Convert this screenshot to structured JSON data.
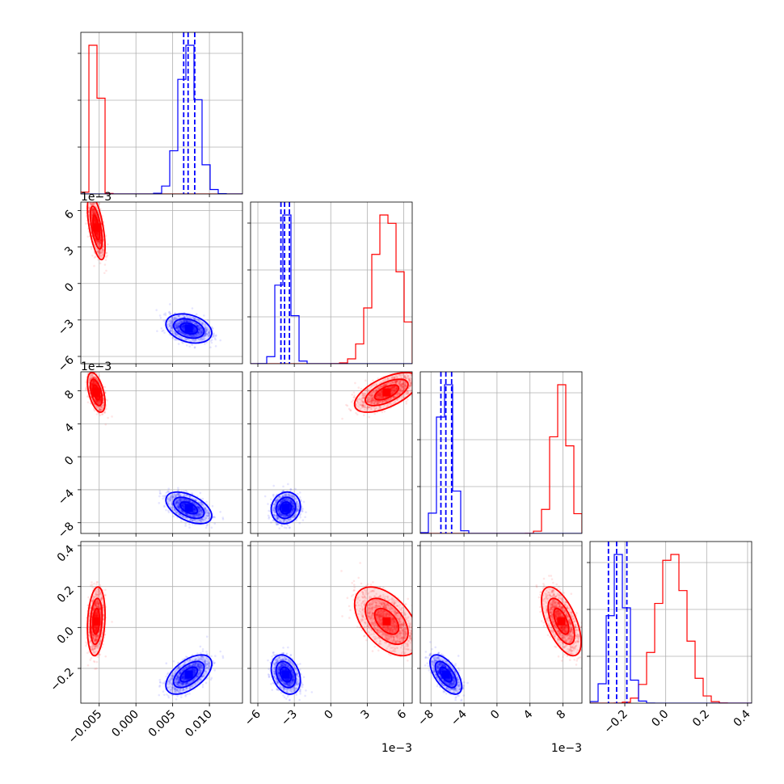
{
  "chart_data": {
    "type": "corner",
    "colors": {
      "series_a": "#ff0000",
      "series_b": "#0000ff",
      "grid": "#b0b0b0"
    },
    "grid": true,
    "series": [
      {
        "color": "red",
        "means": [
          -0.0054,
          0.0046,
          0.0078,
          0.03
        ],
        "sds": [
          0.0005,
          0.0011,
          0.001,
          0.07
        ]
      },
      {
        "color": "blue",
        "means": [
          0.0072,
          -0.0037,
          -0.0062,
          -0.23
        ],
        "sds": [
          0.0013,
          0.0005,
          0.0008,
          0.04
        ]
      }
    ],
    "correlations": [
      {
        "series": "red",
        "pairs": [
          [
            1,
            0,
            -0.6
          ],
          [
            2,
            0,
            -0.5
          ],
          [
            2,
            1,
            0.6
          ],
          [
            3,
            0,
            0.2
          ],
          [
            3,
            1,
            -0.5
          ],
          [
            3,
            2,
            -0.6
          ]
        ]
      },
      {
        "series": "blue",
        "pairs": [
          [
            1,
            0,
            -0.3
          ],
          [
            2,
            0,
            -0.5
          ],
          [
            2,
            1,
            0.1
          ],
          [
            3,
            0,
            0.55
          ],
          [
            3,
            1,
            -0.3
          ],
          [
            3,
            2,
            -0.6
          ]
        ]
      }
    ],
    "quantile_lines": {
      "color": "blue",
      "style": "dashed",
      "values": [
        [
          0.0065,
          0.0071,
          0.008
        ],
        [
          -0.0041,
          -0.0038,
          -0.0034
        ],
        [
          -0.0068,
          -0.0062,
          -0.0055
        ],
        [
          -0.28,
          -0.24,
          -0.19
        ]
      ]
    },
    "parameters": [
      {
        "range": [
          -0.0075,
          0.0145
        ],
        "ticks": [
          -0.005,
          0.0,
          0.005,
          0.01
        ],
        "tick_labels": [
          "−0.005",
          "0.000",
          "0.005",
          "0.010"
        ],
        "offset": ""
      },
      {
        "range": [
          -0.0066,
          0.0067
        ],
        "ticks": [
          -0.006,
          -0.003,
          0.0,
          0.003,
          0.006
        ],
        "tick_labels": [
          "−6",
          "−3",
          "0",
          "3",
          "6"
        ],
        "offset": "1e−3"
      },
      {
        "range": [
          -0.0093,
          0.0103
        ],
        "ticks": [
          -0.008,
          -0.004,
          0.0,
          0.004,
          0.008
        ],
        "tick_labels": [
          "−8",
          "−4",
          "0",
          "4",
          "8"
        ],
        "offset": "1e−3",
        "extra_y_ticks": [
          {
            "value": -0.008,
            "label": "−8"
          }
        ]
      },
      {
        "range": [
          -0.37,
          0.42
        ],
        "ticks": [
          -0.2,
          0.0,
          0.2,
          0.4
        ],
        "tick_labels": [
          "−0.2",
          "0.0",
          "0.2",
          "0.4"
        ],
        "offset": ""
      }
    ]
  }
}
